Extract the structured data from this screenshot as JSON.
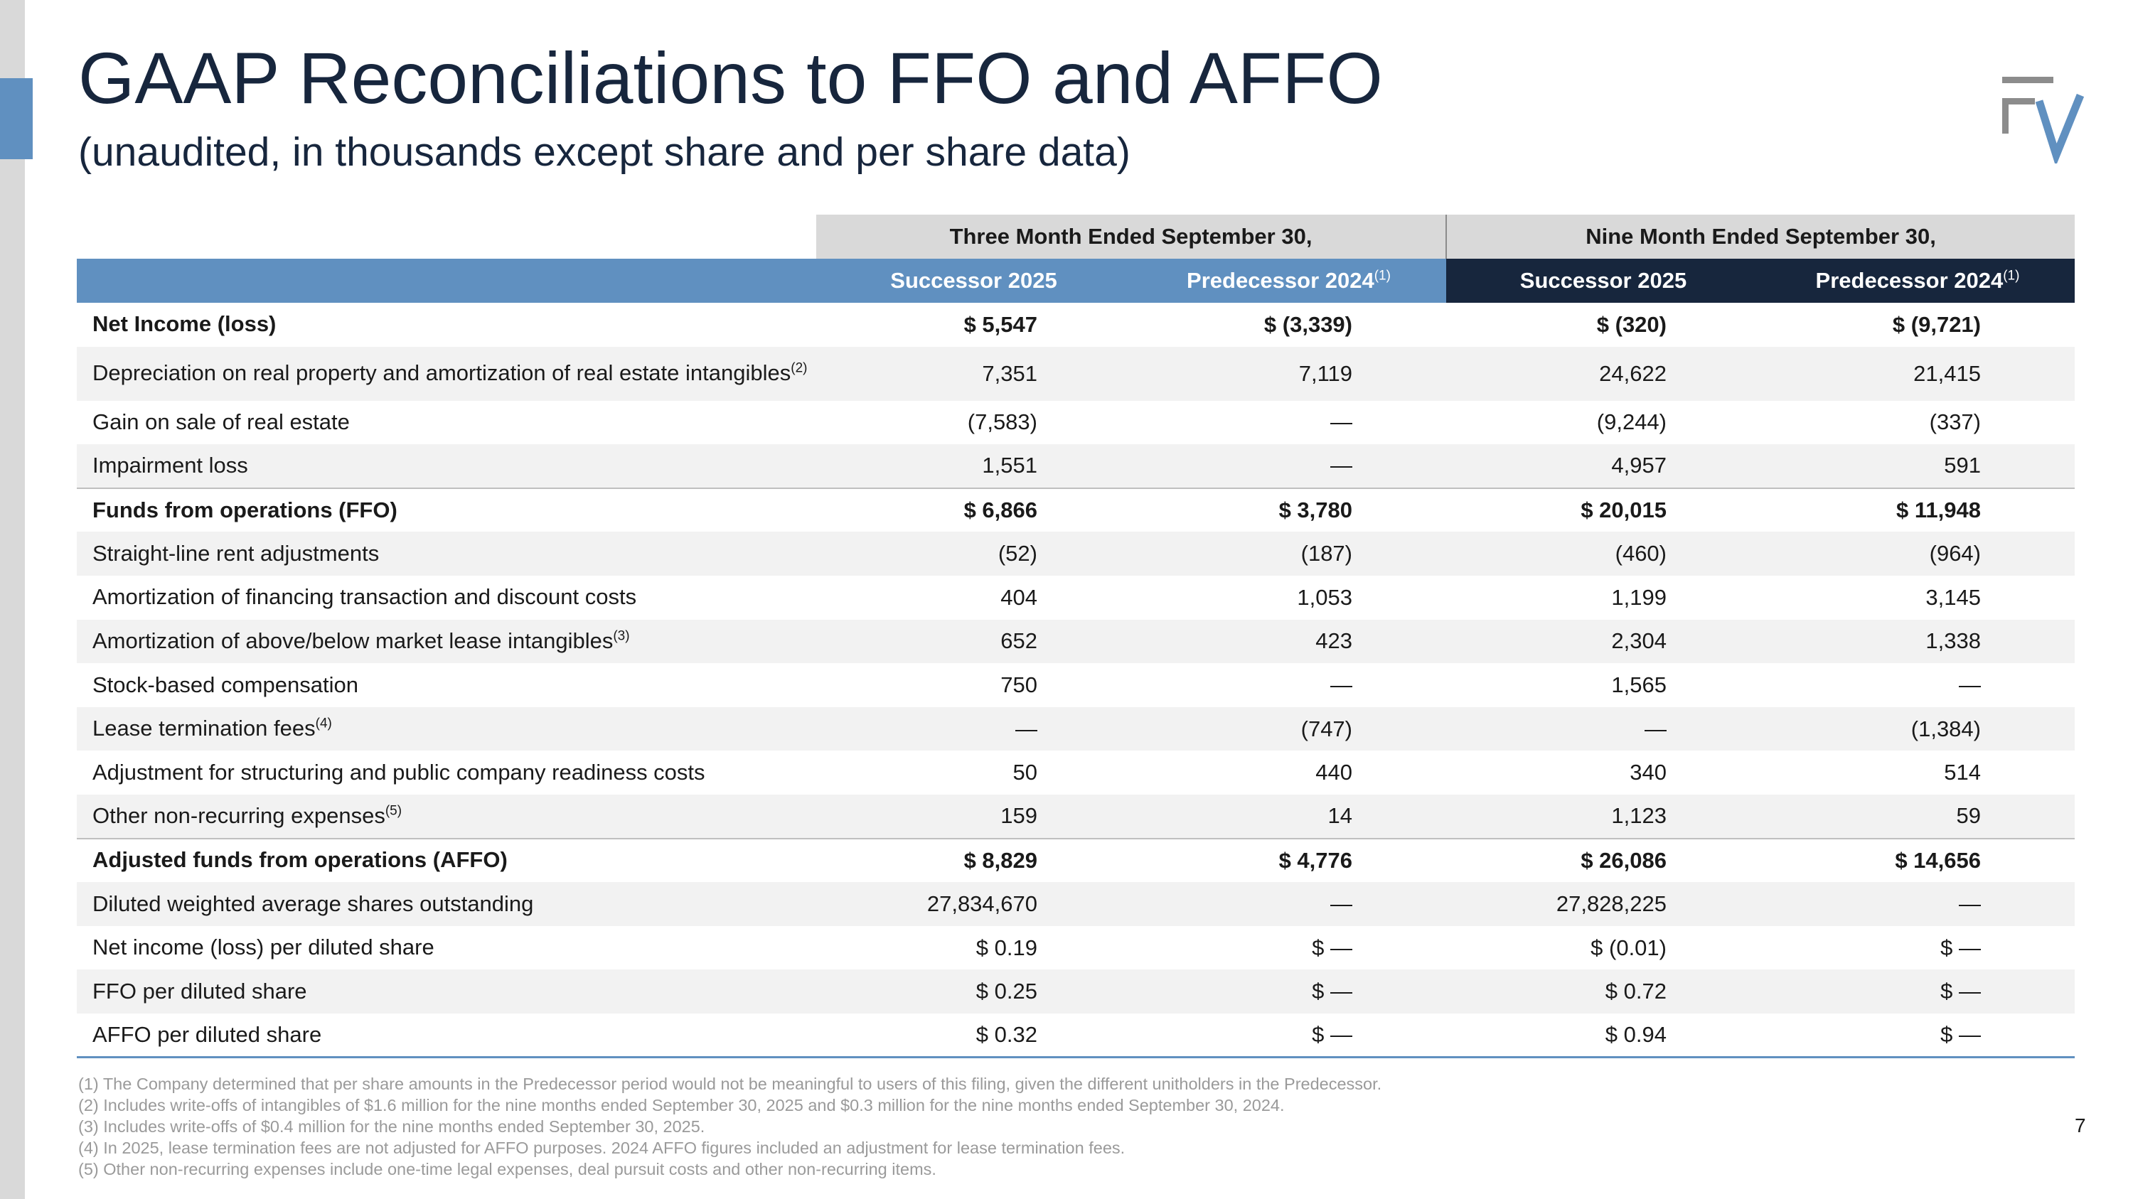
{
  "title": "GAAP Reconciliations to FFO and AFFO",
  "subtitle": "(unaudited, in thousands except share and per share data)",
  "page_number": "7",
  "colors": {
    "light_blue": "#6090c0",
    "navy": "#17263d",
    "grey_header": "#d9d9d9",
    "band": "#f2f2f2"
  },
  "logo_icon": "fv-logo-icon",
  "table": {
    "groups": [
      "Three Month Ended September 30,",
      "Nine Month Ended September 30,"
    ],
    "columns": [
      {
        "label": "Successor 2025",
        "sup": ""
      },
      {
        "label": "Predecessor 2024",
        "sup": "(1)"
      },
      {
        "label": "Successor 2025",
        "sup": ""
      },
      {
        "label": "Predecessor 2024",
        "sup": "(1)"
      }
    ],
    "rows": [
      {
        "label": "Net Income (loss)",
        "sup": "",
        "values": [
          "$ 5,547",
          "$ (3,339)",
          "$ (320)",
          "$ (9,721)"
        ]
      },
      {
        "label": "Depreciation on real property and amortization of real estate intangibles",
        "sup": "(2)",
        "values": [
          "7,351",
          "7,119",
          "24,622",
          "21,415"
        ]
      },
      {
        "label": "Gain on sale of real estate",
        "sup": "",
        "values": [
          "(7,583)",
          "—",
          "(9,244)",
          "(337)"
        ]
      },
      {
        "label": "Impairment loss",
        "sup": "",
        "values": [
          "1,551",
          "—",
          "4,957",
          "591"
        ]
      },
      {
        "label": "Funds from operations (FFO)",
        "sup": "",
        "values": [
          "$ 6,866",
          "$ 3,780",
          "$ 20,015",
          "$ 11,948"
        ]
      },
      {
        "label": "Straight-line rent adjustments",
        "sup": "",
        "values": [
          "(52)",
          "(187)",
          "(460)",
          "(964)"
        ]
      },
      {
        "label": "Amortization of financing transaction and discount costs",
        "sup": "",
        "values": [
          "404",
          "1,053",
          "1,199",
          "3,145"
        ]
      },
      {
        "label": "Amortization of above/below market lease intangibles",
        "sup": "(3)",
        "values": [
          "652",
          "423",
          "2,304",
          "1,338"
        ]
      },
      {
        "label": "Stock-based compensation",
        "sup": "",
        "values": [
          "750",
          "—",
          "1,565",
          "—"
        ]
      },
      {
        "label": "Lease termination fees",
        "sup": "(4)",
        "values": [
          "—",
          "(747)",
          "—",
          "(1,384)"
        ]
      },
      {
        "label": "Adjustment for structuring and public company readiness costs",
        "sup": "",
        "values": [
          "50",
          "440",
          "340",
          "514"
        ]
      },
      {
        "label": "Other non-recurring expenses",
        "sup": "(5)",
        "values": [
          "159",
          "14",
          "1,123",
          "59"
        ]
      },
      {
        "label": "Adjusted funds from operations (AFFO)",
        "sup": "",
        "values": [
          "$ 8,829",
          "$ 4,776",
          "$ 26,086",
          "$ 14,656"
        ]
      },
      {
        "label": "Diluted weighted average shares outstanding",
        "sup": "",
        "values": [
          "27,834,670",
          "—",
          "27,828,225",
          "—"
        ]
      },
      {
        "label": "Net income (loss) per diluted share",
        "sup": "",
        "values": [
          "$ 0.19",
          "$ —",
          "$ (0.01)",
          "$ —"
        ]
      },
      {
        "label": "FFO per diluted share",
        "sup": "",
        "values": [
          "$ 0.25",
          "$ —",
          "$ 0.72",
          "$ —"
        ]
      },
      {
        "label": "AFFO per diluted share",
        "sup": "",
        "values": [
          "$ 0.32",
          "$ —",
          "$ 0.94",
          "$ —"
        ]
      }
    ]
  },
  "footnotes": [
    "(1) The Company determined that per share amounts in the Predecessor period would not be meaningful to users of this filing, given the different unitholders in the Predecessor.",
    "(2) Includes write-offs of intangibles of $1.6 million for the nine months ended September 30, 2025 and $0.3 million for the nine months ended September 30, 2024.",
    "(3) Includes write-offs of $0.4 million for the nine months ended September 30, 2025.",
    "(4) In 2025, lease termination fees are not adjusted for AFFO purposes. 2024 AFFO figures included an adjustment for lease termination fees.",
    "(5) Other non-recurring expenses include one-time legal expenses, deal pursuit costs and other non-recurring items."
  ]
}
